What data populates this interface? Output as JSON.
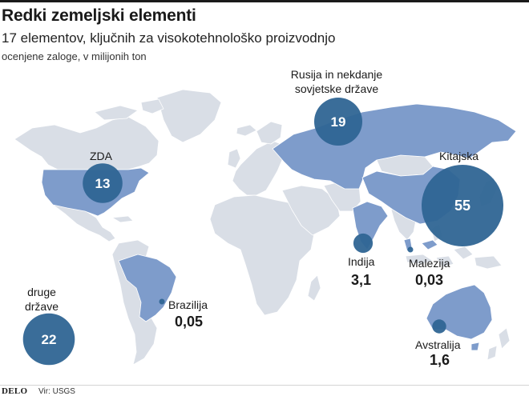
{
  "header": {
    "title": "Redki zemeljski elementi",
    "subtitle": "17 elementov, ključnih za visokotehnološko proizvodnjo",
    "note": "ocenjene zaloge, v milijonih ton"
  },
  "regions": [
    {
      "id": "zda",
      "label": "ZDA",
      "value": "13",
      "color": "#2f6594"
    },
    {
      "id": "rusija",
      "label": "Rusija in nekdanje sovjetske države",
      "value": "19",
      "color": "#2f6594"
    },
    {
      "id": "kitajska",
      "label": "Kitajska",
      "value": "55",
      "color": "#2f6594"
    },
    {
      "id": "indija",
      "label": "Indija",
      "value": "3,1",
      "color": "#2f6594"
    },
    {
      "id": "malezija",
      "label": "Malezija",
      "value": "0,03",
      "color": "#2f6594"
    },
    {
      "id": "brazilija",
      "label": "Brazilija",
      "value": "0,05",
      "color": "#2f6594"
    },
    {
      "id": "avstralija",
      "label": "Avstralija",
      "value": "1,6",
      "color": "#2f6594"
    },
    {
      "id": "druge",
      "label": "druge države",
      "value": "22",
      "color": "#2f6594"
    }
  ],
  "colors": {
    "highlight_country": "#7e9ccb",
    "other_land": "#d9dee6",
    "bubble": "#2f6594"
  },
  "footer": {
    "logo": "DELO",
    "source": "Vir: USGS"
  }
}
